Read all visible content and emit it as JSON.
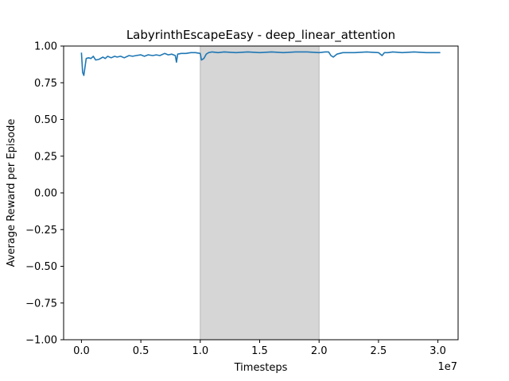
{
  "chart_data": {
    "type": "line",
    "title": "LabyrinthEscapeEasy - deep_linear_attention",
    "xlabel": "Timesteps",
    "ylabel": "Average Reward per Episode",
    "x_offset_text": "1e7",
    "xlim": [
      -0.15,
      3.17
    ],
    "ylim": [
      -1.0,
      1.0
    ],
    "x_scale_factor": 10000000,
    "x_ticks": [
      0.0,
      0.5,
      1.0,
      1.5,
      2.0,
      2.5,
      3.0
    ],
    "x_tick_labels": [
      "0.0",
      "0.5",
      "1.0",
      "1.5",
      "2.0",
      "2.5",
      "3.0"
    ],
    "y_ticks": [
      1.0,
      0.75,
      0.5,
      0.25,
      0.0,
      -0.25,
      -0.5,
      -0.75,
      -1.0
    ],
    "y_tick_labels": [
      "1.00",
      "0.75",
      "0.50",
      "0.25",
      "0.00",
      "−0.25",
      "−0.50",
      "−0.75",
      "−1.00"
    ],
    "grid": false,
    "shaded_region": {
      "x": [
        1.0,
        2.0
      ],
      "color": "#d6d6d6"
    },
    "series": [
      {
        "color": "#1f77b4",
        "x": [
          0.0,
          0.01,
          0.02,
          0.04,
          0.06,
          0.08,
          0.1,
          0.12,
          0.15,
          0.18,
          0.2,
          0.22,
          0.25,
          0.28,
          0.3,
          0.33,
          0.36,
          0.4,
          0.43,
          0.46,
          0.5,
          0.53,
          0.56,
          0.6,
          0.63,
          0.66,
          0.7,
          0.73,
          0.76,
          0.79,
          0.8,
          0.81,
          0.84,
          0.88,
          0.92,
          0.96,
          1.0,
          1.01,
          1.03,
          1.05,
          1.07,
          1.1,
          1.15,
          1.2,
          1.3,
          1.4,
          1.5,
          1.6,
          1.7,
          1.8,
          1.9,
          2.0,
          2.05,
          2.08,
          2.1,
          2.12,
          2.15,
          2.2,
          2.3,
          2.4,
          2.5,
          2.53,
          2.55,
          2.58,
          2.62,
          2.7,
          2.8,
          2.9,
          3.0,
          3.02
        ],
        "y": [
          0.955,
          0.82,
          0.8,
          0.915,
          0.92,
          0.915,
          0.93,
          0.905,
          0.91,
          0.925,
          0.915,
          0.93,
          0.92,
          0.93,
          0.925,
          0.93,
          0.92,
          0.935,
          0.93,
          0.935,
          0.94,
          0.93,
          0.94,
          0.935,
          0.94,
          0.935,
          0.95,
          0.94,
          0.945,
          0.935,
          0.89,
          0.945,
          0.95,
          0.95,
          0.955,
          0.955,
          0.95,
          0.905,
          0.915,
          0.945,
          0.955,
          0.96,
          0.955,
          0.96,
          0.955,
          0.96,
          0.955,
          0.96,
          0.955,
          0.96,
          0.96,
          0.955,
          0.96,
          0.96,
          0.935,
          0.925,
          0.945,
          0.955,
          0.955,
          0.96,
          0.955,
          0.935,
          0.955,
          0.955,
          0.96,
          0.955,
          0.96,
          0.955,
          0.955,
          0.955
        ]
      }
    ]
  }
}
